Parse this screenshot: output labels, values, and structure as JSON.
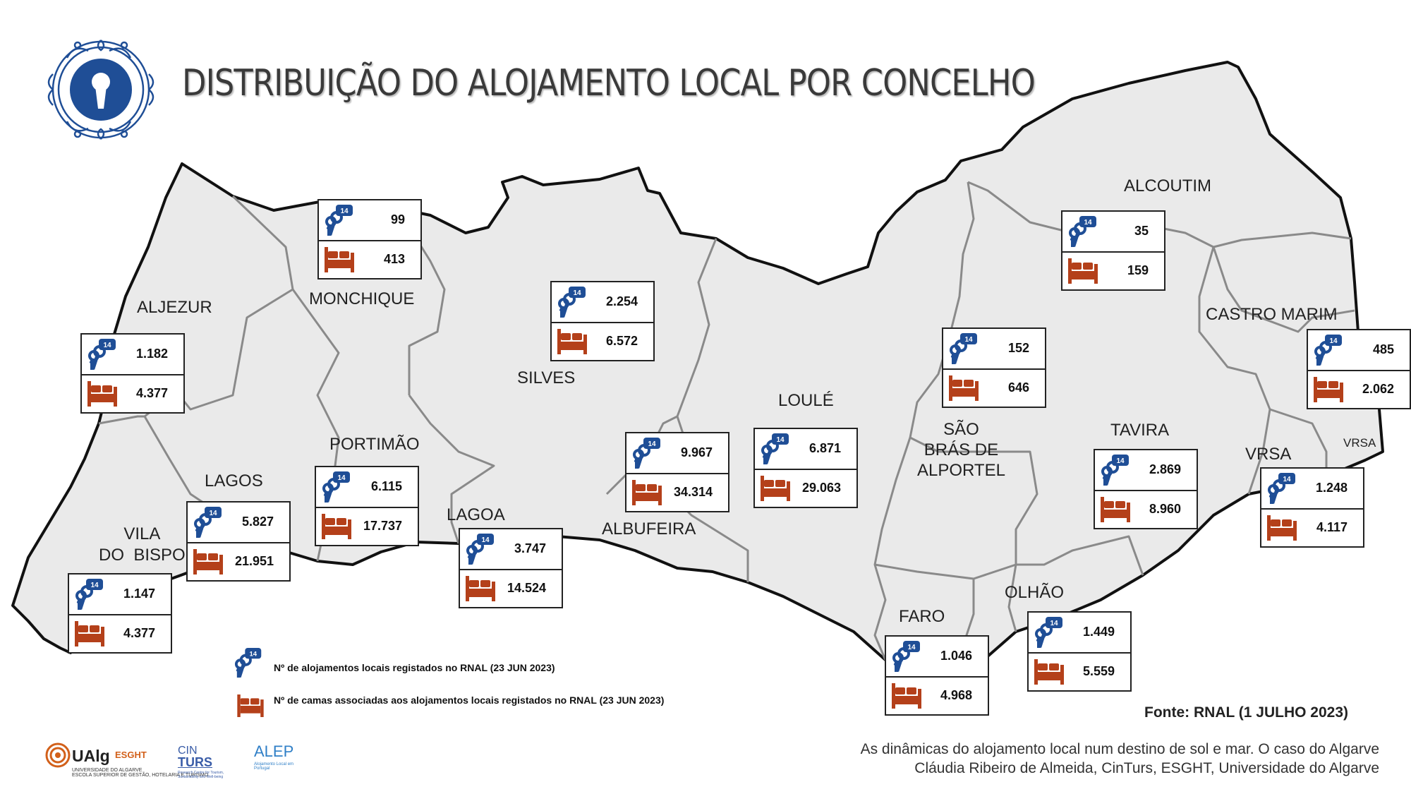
{
  "title": "DISTRIBUIÇÃO DO ALOJAMENTO LOCAL POR CONCELHO",
  "colors": {
    "map_fill": "#eaeaea",
    "border": "#111111",
    "inner_border": "#8a8a8a",
    "key_blue": "#1f4e96",
    "bed_orange": "#b4401a",
    "logo_blue": "#1f4e96"
  },
  "icons": {
    "key": "keys-icon",
    "bed": "bed-icon",
    "logo": "keyhole-logo-icon"
  },
  "key_badge": "14",
  "municipalities": [
    {
      "name": "ALJEZUR",
      "alojamentos": "1.182",
      "camas": "4.377"
    },
    {
      "name": "MONCHIQUE",
      "alojamentos": "99",
      "camas": "413"
    },
    {
      "name": "SILVES",
      "alojamentos": "2.254",
      "camas": "6.572"
    },
    {
      "name": "LOULÉ",
      "alojamentos": "6.871",
      "camas": "29.063"
    },
    {
      "name": "SÃO BRÁS DE ALPORTEL",
      "name_lines": [
        "SÃO",
        "BRÁS DE",
        "ALPORTEL"
      ],
      "alojamentos": "152",
      "camas": "646"
    },
    {
      "name": "ALCOUTIM",
      "alojamentos": "35",
      "camas": "159"
    },
    {
      "name": "CASTRO MARIM",
      "alojamentos": "485",
      "camas": "2.062"
    },
    {
      "name": "TAVIRA",
      "alojamentos": "2.869",
      "camas": "8.960"
    },
    {
      "name": "VRSA",
      "alojamentos": "1.248",
      "camas": "4.117"
    },
    {
      "name": "OLHÃO",
      "alojamentos": "1.449",
      "camas": "5.559"
    },
    {
      "name": "FARO",
      "alojamentos": "1.046",
      "camas": "4.968"
    },
    {
      "name": "ALBUFEIRA",
      "alojamentos": "9.967",
      "camas": "34.314"
    },
    {
      "name": "LAGOA",
      "alojamentos": "3.747",
      "camas": "14.524"
    },
    {
      "name": "PORTIMÃO",
      "alojamentos": "6.115",
      "camas": "17.737"
    },
    {
      "name": "LAGOS",
      "alojamentos": "5.827",
      "camas": "21.951"
    },
    {
      "name": "VILA DO BISPO",
      "name_lines": [
        "VILA",
        "DO  BISPO"
      ],
      "alojamentos": "1.147",
      "camas": "4.377"
    }
  ],
  "extra_label": "VRSA",
  "legend": {
    "alojamentos": "Nº de alojamentos locais registados no RNAL (23 JUN 2023)",
    "camas": "Nº de camas associadas aos alojamentos locais registados no RNAL (23 JUN 2023)"
  },
  "source": "Fonte: RNAL (1 JULHO 2023)",
  "credits": [
    "As dinâmicas do alojamento local num destino de sol e mar. O caso do Algarve",
    "Cláudia Ribeiro de Almeida, CinTurs, ESGHT, Universidade do Algarve"
  ],
  "partners": {
    "ualg": "UAlg",
    "esght": "ESGHT",
    "ualg_sub": "UNIVERSIDADE DO ALGARVE",
    "ualg_sub2": "ESCOLA SUPERIOR DE GESTÃO, HOTELARIA E TURISMO",
    "cinturs_1": "CIN",
    "cinturs_2": "TURS",
    "cinturs_sub": "Research Centre for Tourism, Sustainability and Well-being",
    "alep": "ALEP",
    "alep_sub": "Alojamento Local em Portugal"
  }
}
